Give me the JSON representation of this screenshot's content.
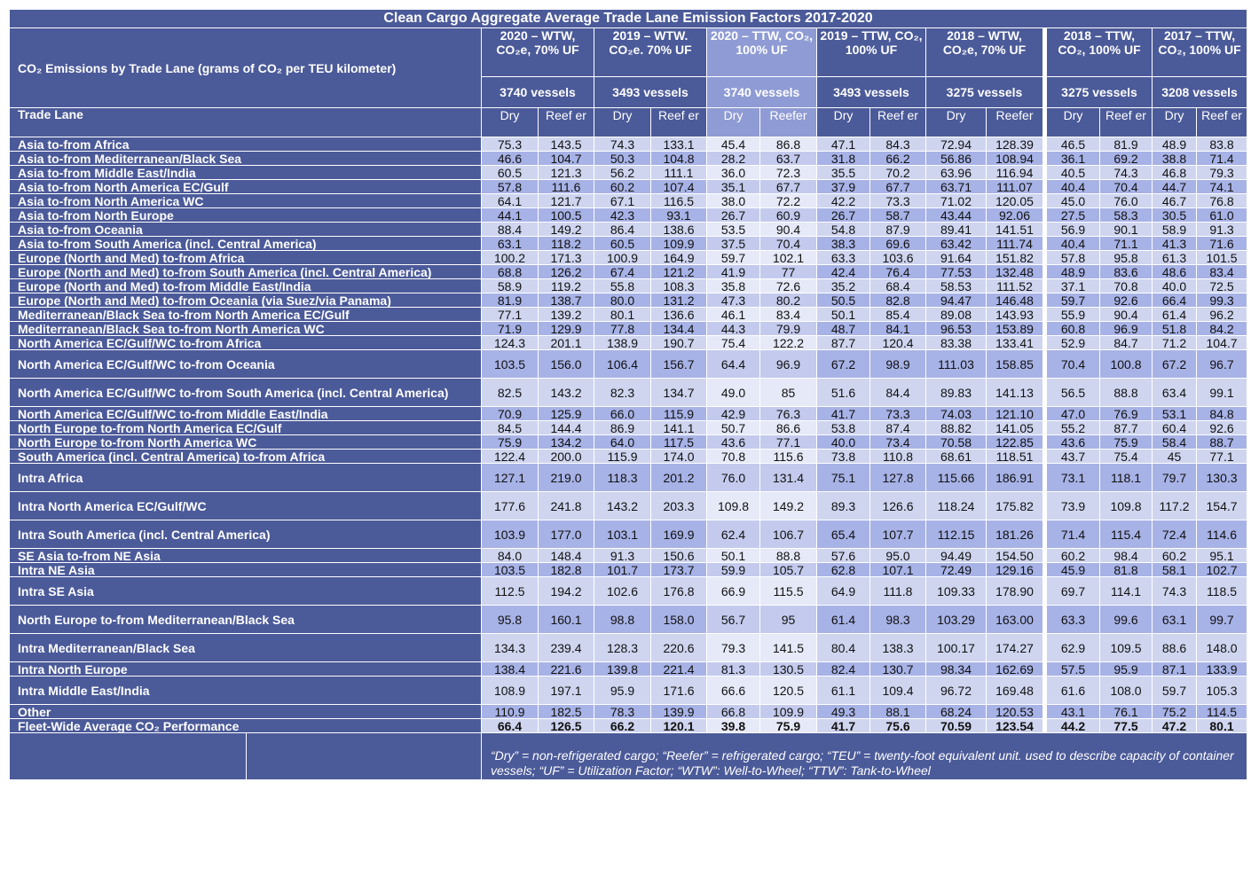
{
  "title": "Clean Cargo Aggregate Average Trade Lane Emission Factors 2017-2020",
  "row_header": "CO₂ Emissions by Trade Lane (grams of CO₂ per TEU kilometer)",
  "lane_header": "Trade Lane",
  "column_groups": [
    {
      "label": "2020 – WTW, CO₂e, 70% UF",
      "vessels": "3740 vessels",
      "dry": "Dry",
      "reefer": "Reef er"
    },
    {
      "label": "2019 – WTW. CO₂e. 70% UF",
      "vessels": "3493 vessels",
      "dry": "Dry",
      "reefer": "Reef er"
    },
    {
      "label": "2020 – TTW, CO₂, 100% UF",
      "vessels": "3740 vessels",
      "dry": "Dry",
      "reefer": "Reefer"
    },
    {
      "label": "2019 – TTW, CO₂, 100% UF",
      "vessels": "3493 vessels",
      "dry": "Dry",
      "reefer": "Reef er"
    },
    {
      "label": "2018 – WTW, CO₂e, 70% UF",
      "vessels": "3275 vessels",
      "dry": "Dry",
      "reefer": "Reefer"
    },
    {
      "label": "2018 – TTW, CO₂, 100% UF",
      "vessels": "3275 vessels",
      "dry": "Dry",
      "reefer": "Reef er"
    },
    {
      "label": "2017 – TTW, CO₂, 100% UF",
      "vessels": "3208 vessels",
      "dry": "Dry",
      "reefer": "Reef er"
    }
  ],
  "rows": [
    {
      "lane": "Asia to-from Africa",
      "values": [
        "75.3",
        "143.5",
        "74.3",
        "133.1",
        "45.4",
        "86.8",
        "47.1",
        "84.3",
        "72.94",
        "128.39",
        "46.5",
        "81.9",
        "48.9",
        "83.8"
      ]
    },
    {
      "lane": "Asia to-from Mediterranean/Black Sea",
      "values": [
        "46.6",
        "104.7",
        "50.3",
        "104.8",
        "28.2",
        "63.7",
        "31.8",
        "66.2",
        "56.86",
        "108.94",
        "36.1",
        "69.2",
        "38.8",
        "71.4"
      ]
    },
    {
      "lane": "Asia to-from Middle East/India",
      "values": [
        "60.5",
        "121.3",
        "56.2",
        "111.1",
        "36.0",
        "72.3",
        "35.5",
        "70.2",
        "63.96",
        "116.94",
        "40.5",
        "74.3",
        "46.8",
        "79.3"
      ]
    },
    {
      "lane": "Asia to-from North America EC/Gulf",
      "values": [
        "57.8",
        "111.6",
        "60.2",
        "107.4",
        "35.1",
        "67.7",
        "37.9",
        "67.7",
        "63.71",
        "111.07",
        "40.4",
        "70.4",
        "44.7",
        "74.1"
      ]
    },
    {
      "lane": "Asia to-from North America WC",
      "values": [
        "64.1",
        "121.7",
        "67.1",
        "116.5",
        "38.0",
        "72.2",
        "42.2",
        "73.3",
        "71.02",
        "120.05",
        "45.0",
        "76.0",
        "46.7",
        "76.8"
      ]
    },
    {
      "lane": "Asia to-from North Europe",
      "values": [
        "44.1",
        "100.5",
        "42.3",
        "93.1",
        "26.7",
        "60.9",
        "26.7",
        "58.7",
        "43.44",
        "92.06",
        "27.5",
        "58.3",
        "30.5",
        "61.0"
      ]
    },
    {
      "lane": "Asia to-from Oceania",
      "values": [
        "88.4",
        "149.2",
        "86.4",
        "138.6",
        "53.5",
        "90.4",
        "54.8",
        "87.9",
        "89.41",
        "141.51",
        "56.9",
        "90.1",
        "58.9",
        "91.3"
      ]
    },
    {
      "lane": "Asia to-from South America (incl. Central America)",
      "values": [
        "63.1",
        "118.2",
        "60.5",
        "109.9",
        "37.5",
        "70.4",
        "38.3",
        "69.6",
        "63.42",
        "111.74",
        "40.4",
        "71.1",
        "41.3",
        "71.6"
      ]
    },
    {
      "lane": "Europe (North and Med) to-from Africa",
      "values": [
        "100.2",
        "171.3",
        "100.9",
        "164.9",
        "59.7",
        "102.1",
        "63.3",
        "103.6",
        "91.64",
        "151.82",
        "57.8",
        "95.8",
        "61.3",
        "101.5"
      ]
    },
    {
      "lane": "Europe (North and Med) to-from South America (incl. Central America)",
      "values": [
        "68.8",
        "126.2",
        "67.4",
        "121.2",
        "41.9",
        "77",
        "42.4",
        "76.4",
        "77.53",
        "132.48",
        "48.9",
        "83.6",
        "48.6",
        "83.4"
      ]
    },
    {
      "lane": "Europe (North and Med) to-from Middle East/India",
      "values": [
        "58.9",
        "119.2",
        "55.8",
        "108.3",
        "35.8",
        "72.6",
        "35.2",
        "68.4",
        "58.53",
        "111.52",
        "37.1",
        "70.8",
        "40.0",
        "72.5"
      ]
    },
    {
      "lane": "Europe (North and Med) to-from Oceania (via Suez/via Panama)",
      "values": [
        "81.9",
        "138.7",
        "80.0",
        "131.2",
        "47.3",
        "80.2",
        "50.5",
        "82.8",
        "94.47",
        "146.48",
        "59.7",
        "92.6",
        "66.4",
        "99.3"
      ]
    },
    {
      "lane": "Mediterranean/Black Sea to-from North America EC/Gulf",
      "values": [
        "77.1",
        "139.2",
        "80.1",
        "136.6",
        "46.1",
        "83.4",
        "50.1",
        "85.4",
        "89.08",
        "143.93",
        "55.9",
        "90.4",
        "61.4",
        "96.2"
      ]
    },
    {
      "lane": "Mediterranean/Black Sea to-from North America WC",
      "values": [
        "71.9",
        "129.9",
        "77.8",
        "134.4",
        "44.3",
        "79.9",
        "48.7",
        "84.1",
        "96.53",
        "153.89",
        "60.8",
        "96.9",
        "51.8",
        "84.2"
      ]
    },
    {
      "lane": "North America EC/Gulf/WC to-from Africa",
      "values": [
        "124.3",
        "201.1",
        "138.9",
        "190.7",
        "75.4",
        "122.2",
        "87.7",
        "120.4",
        "83.38",
        "133.41",
        "52.9",
        "84.7",
        "71.2",
        "104.7"
      ]
    },
    {
      "lane": "North America EC/Gulf/WC to-from Oceania",
      "values": [
        "103.5",
        "156.0",
        "106.4",
        "156.7",
        "64.4",
        "96.9",
        "67.2",
        "98.9",
        "111.03",
        "158.85",
        "70.4",
        "100.8",
        "67.2",
        "96.7"
      ]
    },
    {
      "lane": "North America EC/Gulf/WC to-from South America (incl. Central America)",
      "values": [
        "82.5",
        "143.2",
        "82.3",
        "134.7",
        "49.0",
        "85",
        "51.6",
        "84.4",
        "89.83",
        "141.13",
        "56.5",
        "88.8",
        "63.4",
        "99.1"
      ]
    },
    {
      "lane": "North America EC/Gulf/WC to-from Middle East/India",
      "values": [
        "70.9",
        "125.9",
        "66.0",
        "115.9",
        "42.9",
        "76.3",
        "41.7",
        "73.3",
        "74.03",
        "121.10",
        "47.0",
        "76.9",
        "53.1",
        "84.8"
      ]
    },
    {
      "lane": "North Europe to-from North America EC/Gulf",
      "values": [
        "84.5",
        "144.4",
        "86.9",
        "141.1",
        "50.7",
        "86.6",
        "53.8",
        "87.4",
        "88.82",
        "141.05",
        "55.2",
        "87.7",
        "60.4",
        "92.6"
      ]
    },
    {
      "lane": "North Europe to-from North America WC",
      "values": [
        "75.9",
        "134.2",
        "64.0",
        "117.5",
        "43.6",
        "77.1",
        "40.0",
        "73.4",
        "70.58",
        "122.85",
        "43.6",
        "75.9",
        "58.4",
        "88.7"
      ]
    },
    {
      "lane": "South America (incl. Central America) to-from Africa",
      "values": [
        "122.4",
        "200.0",
        "115.9",
        "174.0",
        "70.8",
        "115.6",
        "73.8",
        "110.8",
        "68.61",
        "118.51",
        "43.7",
        "75.4",
        "45",
        "77.1"
      ]
    },
    {
      "lane": "Intra Africa",
      "values": [
        "127.1",
        "219.0",
        "118.3",
        "201.2",
        "76.0",
        "131.4",
        "75.1",
        "127.8",
        "115.66",
        "186.91",
        "73.1",
        "118.1",
        "79.7",
        "130.3"
      ]
    },
    {
      "lane": "Intra North America EC/Gulf/WC",
      "values": [
        "177.6",
        "241.8",
        "143.2",
        "203.3",
        "109.8",
        "149.2",
        "89.3",
        "126.6",
        "118.24",
        "175.82",
        "73.9",
        "109.8",
        "117.2",
        "154.7"
      ]
    },
    {
      "lane": "Intra South America (incl. Central America)",
      "values": [
        "103.9",
        "177.0",
        "103.1",
        "169.9",
        "62.4",
        "106.7",
        "65.4",
        "107.7",
        "112.15",
        "181.26",
        "71.4",
        "115.4",
        "72.4",
        "114.6"
      ]
    },
    {
      "lane": "SE Asia to-from NE Asia",
      "values": [
        "84.0",
        "148.4",
        "91.3",
        "150.6",
        "50.1",
        "88.8",
        "57.6",
        "95.0",
        "94.49",
        "154.50",
        "60.2",
        "98.4",
        "60.2",
        "95.1"
      ]
    },
    {
      "lane": "Intra NE Asia",
      "values": [
        "103.5",
        "182.8",
        "101.7",
        "173.7",
        "59.9",
        "105.7",
        "62.8",
        "107.1",
        "72.49",
        "129.16",
        "45.9",
        "81.8",
        "58.1",
        "102.7"
      ]
    },
    {
      "lane": "Intra SE Asia",
      "values": [
        "112.5",
        "194.2",
        "102.6",
        "176.8",
        "66.9",
        "115.5",
        "64.9",
        "111.8",
        "109.33",
        "178.90",
        "69.7",
        "114.1",
        "74.3",
        "118.5"
      ]
    },
    {
      "lane": "North Europe to-from Mediterranean/Black Sea",
      "values": [
        "95.8",
        "160.1",
        "98.8",
        "158.0",
        "56.7",
        "95",
        "61.4",
        "98.3",
        "103.29",
        "163.00",
        "63.3",
        "99.6",
        "63.1",
        "99.7"
      ]
    },
    {
      "lane": "Intra Mediterranean/Black Sea",
      "values": [
        "134.3",
        "239.4",
        "128.3",
        "220.6",
        "79.3",
        "141.5",
        "80.4",
        "138.3",
        "100.17",
        "174.27",
        "62.9",
        "109.5",
        "88.6",
        "148.0"
      ]
    },
    {
      "lane": "Intra North Europe",
      "values": [
        "138.4",
        "221.6",
        "139.8",
        "221.4",
        "81.3",
        "130.5",
        "82.4",
        "130.7",
        "98.34",
        "162.69",
        "57.5",
        "95.9",
        "87.1",
        "133.9"
      ]
    },
    {
      "lane": "Intra Middle East/India",
      "values": [
        "108.9",
        "197.1",
        "95.9",
        "171.6",
        "66.6",
        "120.5",
        "61.1",
        "109.4",
        "96.72",
        "169.48",
        "61.6",
        "108.0",
        "59.7",
        "105.3"
      ]
    },
    {
      "lane": "Other",
      "values": [
        "110.9",
        "182.5",
        "78.3",
        "139.9",
        "66.8",
        "109.9",
        "49.3",
        "88.1",
        "68.24",
        "120.53",
        "43.1",
        "76.1",
        "75.2",
        "114.5"
      ]
    }
  ],
  "average": {
    "lane": "Fleet-Wide Average CO₂ Performance",
    "values": [
      "66.4",
      "126.5",
      "66.2",
      "120.1",
      "39.8",
      "75.9",
      "41.7",
      "75.6",
      "70.59",
      "123.54",
      "44.2",
      "77.5",
      "47.2",
      "80.1"
    ]
  },
  "footnote": "“Dry” = non-refrigerated cargo; “Reefer” = refrigerated cargo; “TEU” = twenty-foot equivalent unit. used to describe capacity of container vessels; “UF” = Utilization Factor; “WTW”: Well-to-Wheel; “TTW”: Tank-to-Wheel"
}
